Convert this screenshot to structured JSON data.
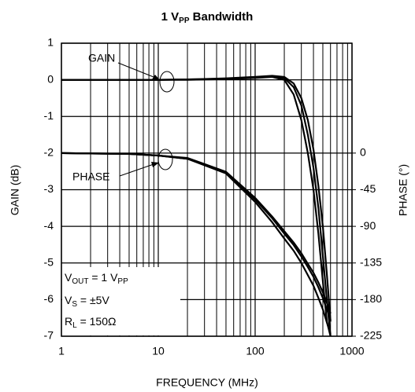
{
  "chart_data": {
    "type": "line",
    "title": [
      "1 V",
      "PP",
      " Bandwidth"
    ],
    "x_label": "FREQUENCY (MHz)",
    "y_label": "GAIN (dB)",
    "y2_label": "PHASE (°)",
    "log_x": true,
    "grid": true,
    "color": "#000000",
    "xlim": [
      1,
      1000
    ],
    "xticks": [
      1,
      10,
      100,
      1000
    ],
    "xgrid_minor": [
      2,
      3,
      4,
      5,
      6,
      7,
      8,
      9,
      20,
      30,
      40,
      50,
      60,
      70,
      80,
      90,
      200,
      300,
      400,
      500,
      600,
      700,
      800,
      900
    ],
    "ylim": [
      -7,
      1
    ],
    "yticks": [
      1,
      0,
      -1,
      -2,
      -3,
      -4,
      -5,
      -6,
      -7
    ],
    "y2lim": [
      -225,
      135
    ],
    "y2ticks": [
      0,
      -45,
      -90,
      -135,
      -180,
      -225
    ],
    "x": [
      1,
      2,
      5,
      10,
      20,
      50,
      100,
      150,
      200,
      250,
      300,
      350,
      400,
      450,
      500,
      550,
      600
    ],
    "series": [
      {
        "values": [
          0,
          0,
          0,
          0,
          0,
          0.02,
          0.05,
          0.08,
          0,
          -0.4,
          -1.1,
          -2,
          -3,
          -4.2,
          -5.5,
          -6.6,
          -7
        ]
      },
      {
        "values": [
          0,
          0,
          0,
          0,
          0.01,
          0.03,
          0.07,
          0.1,
          0.05,
          -0.2,
          -0.7,
          -1.5,
          -2.4,
          -3.5,
          -4.8,
          -6,
          -7
        ]
      },
      {
        "values": [
          0,
          0,
          0,
          0,
          0.01,
          0.04,
          0.08,
          0.11,
          0.08,
          -0.1,
          -0.5,
          -1.1,
          -1.9,
          -2.9,
          -4,
          -5.3,
          -6.6
        ]
      },
      {
        "axis": "y2",
        "values": [
          0,
          -0.5,
          -1,
          -3,
          -7,
          -25,
          -60,
          -85,
          -105,
          -120,
          -135,
          -150,
          -163,
          -178,
          -192,
          -208,
          -222
        ]
      },
      {
        "axis": "y2",
        "values": [
          0,
          -0.5,
          -1,
          -3,
          -7,
          -24,
          -57,
          -80,
          -99,
          -113,
          -127,
          -140,
          -152,
          -165,
          -178,
          -192,
          -205
        ]
      },
      {
        "axis": "y2",
        "values": [
          0,
          -0.5,
          -1,
          -3,
          -6,
          -23,
          -55,
          -78,
          -96,
          -110,
          -123,
          -136,
          -147,
          -159,
          -171,
          -184,
          -197
        ]
      }
    ],
    "annotations": {
      "gain": "GAIN",
      "phase": "PHASE",
      "vout": [
        "V",
        "OUT",
        " = 1 V",
        "PP"
      ],
      "vs": [
        "V",
        "S",
        " = ±5V"
      ],
      "rl": [
        "R",
        "L",
        " = 150Ω"
      ]
    }
  }
}
